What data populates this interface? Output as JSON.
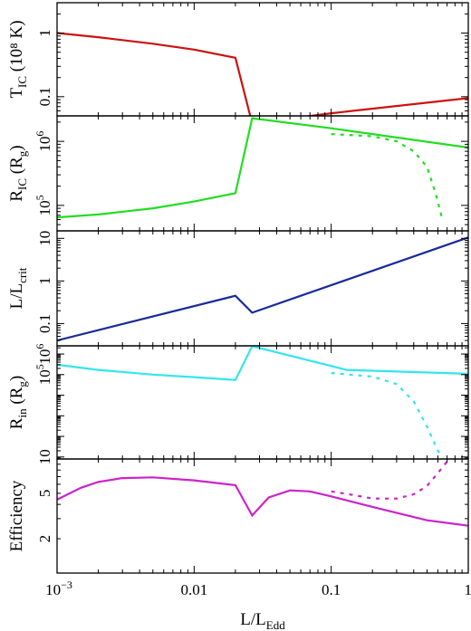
{
  "chart_data": [
    {
      "type": "line",
      "ylabel_main": "T",
      "ylabel_sub": "IC",
      "ylabel_tail": " (10⁸ K)",
      "yscale": "log",
      "ylim": [
        0.05,
        3.0
      ],
      "yticks": [
        {
          "v": 1,
          "label": "1"
        },
        {
          "v": 0.1,
          "label": "0.1"
        }
      ],
      "series": [
        {
          "color": "#cc1111",
          "dashed": false,
          "x": [
            0.001,
            0.002,
            0.005,
            0.01,
            0.02,
            0.0265,
            0.1,
            1.0
          ],
          "y": [
            1.0,
            0.86,
            0.68,
            0.55,
            0.41,
            0.038,
            0.055,
            0.095
          ]
        }
      ]
    },
    {
      "type": "line",
      "ylabel_main": "R",
      "ylabel_sub": "IC",
      "ylabel_tail": " (R",
      "ylabel_sub2": "g",
      "ylabel_tail2": ")",
      "yscale": "log",
      "ylim": [
        40000,
        2500000
      ],
      "yticks": [
        {
          "v": 1000000,
          "label": "10",
          "sup": "6"
        },
        {
          "v": 100000,
          "label": "10",
          "sup": "5"
        }
      ],
      "series": [
        {
          "color": "#22dd22",
          "dashed": false,
          "x": [
            0.001,
            0.002,
            0.005,
            0.01,
            0.02,
            0.0265,
            0.1,
            1.0
          ],
          "y": [
            65000,
            72000,
            90000,
            115000,
            155000,
            2300000,
            1600000,
            800000
          ]
        },
        {
          "color": "#22dd22",
          "dashed": true,
          "x": [
            0.1,
            0.2,
            0.3,
            0.4,
            0.5,
            0.58,
            0.65
          ],
          "y": [
            1300000,
            1200000,
            1000000,
            700000,
            400000,
            150000,
            58000
          ]
        }
      ]
    },
    {
      "type": "line",
      "ylabel_main": "L/L",
      "ylabel_sub": "crit",
      "yscale": "log",
      "ylim": [
        0.03,
        15
      ],
      "yticks": [
        {
          "v": 10,
          "label": "10"
        },
        {
          "v": 1,
          "label": "1"
        },
        {
          "v": 0.1,
          "label": "0.1"
        }
      ],
      "series": [
        {
          "color": "#1a2a9a",
          "dashed": false,
          "x": [
            0.001,
            0.02,
            0.0265,
            1.0
          ],
          "y": [
            0.04,
            0.45,
            0.18,
            10.5
          ]
        }
      ]
    },
    {
      "type": "line",
      "ylabel_main": "R",
      "ylabel_sub": "in",
      "ylabel_tail": " (R",
      "ylabel_sub2": "g",
      "ylabel_tail2": ")",
      "yscale": "log",
      "ylim": [
        8,
        2500000
      ],
      "yticks": [
        {
          "v": 1000000,
          "label": "10",
          "sup": "6"
        },
        {
          "v": 100000,
          "label": "10",
          "sup": "5"
        },
        {
          "v": 10,
          "label": "10"
        }
      ],
      "series": [
        {
          "color": "#33e5ee",
          "dashed": false,
          "x": [
            0.001,
            0.002,
            0.005,
            0.01,
            0.02,
            0.0265,
            0.13,
            1.0
          ],
          "y": [
            300000,
            170000,
            100000,
            75000,
            55000,
            2400000,
            170000,
            110000
          ]
        },
        {
          "color": "#33e5ee",
          "dashed": true,
          "x": [
            0.1,
            0.2,
            0.3,
            0.4,
            0.5,
            0.6,
            0.66
          ],
          "y": [
            120000,
            80000,
            35000,
            5000,
            300,
            20,
            10
          ]
        }
      ]
    },
    {
      "type": "line",
      "ylabel_main": "Efficiency",
      "yscale": "log",
      "ylim": [
        1.0,
        10
      ],
      "yticks": [
        {
          "v": 5,
          "label": "5"
        },
        {
          "v": 2,
          "label": "2"
        }
      ],
      "series": [
        {
          "color": "#cc22cc",
          "dashed": false,
          "x": [
            0.001,
            0.0015,
            0.002,
            0.003,
            0.005,
            0.01,
            0.02,
            0.0265,
            0.035,
            0.05,
            0.07,
            0.1,
            0.2,
            0.5,
            1.0
          ],
          "y": [
            4.4,
            5.6,
            6.3,
            6.8,
            6.9,
            6.5,
            5.9,
            3.2,
            4.6,
            5.3,
            5.2,
            4.7,
            3.8,
            2.9,
            2.6
          ]
        },
        {
          "color": "#cc22cc",
          "dashed": true,
          "x": [
            0.1,
            0.15,
            0.2,
            0.3,
            0.4,
            0.5,
            0.6,
            0.65,
            0.7
          ],
          "y": [
            5.2,
            4.8,
            4.5,
            4.5,
            4.9,
            5.8,
            7.5,
            8.5,
            9.5
          ]
        }
      ]
    }
  ],
  "xaxis": {
    "scale": "log",
    "xlim": [
      0.001,
      1.0
    ],
    "ticks": [
      {
        "v": 0.001,
        "label": "10",
        "sup": "−3"
      },
      {
        "v": 0.01,
        "label": "0.01"
      },
      {
        "v": 0.1,
        "label": "0.1"
      },
      {
        "v": 1.0,
        "label": "1"
      }
    ],
    "xlabel_main": "L/L",
    "xlabel_sub": "Edd"
  }
}
